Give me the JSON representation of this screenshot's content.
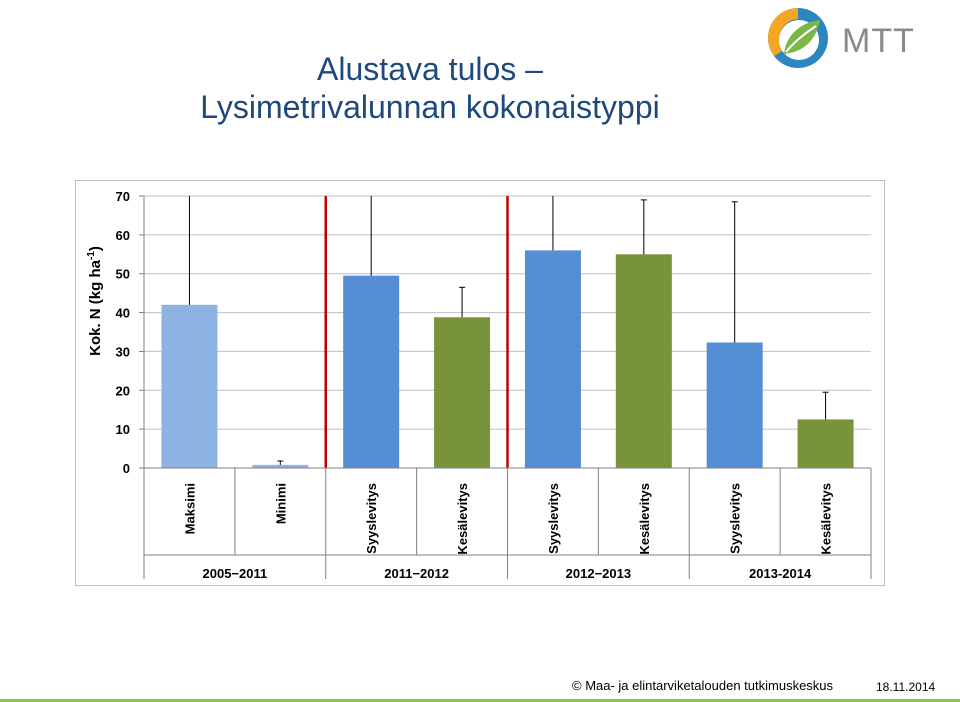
{
  "title": {
    "line1": "Alustava tulos –",
    "line2": "Lysimetrivalunnan kokonaistyppi"
  },
  "logo": {
    "text": "MTT",
    "icon": "mtt-leaf-logo-icon"
  },
  "footer": {
    "copyright": "© Maa- ja elintarviketalouden tutkimuskeskus",
    "date": "18.11.2014"
  },
  "colors": {
    "title": "#1F497D",
    "light_blue": "#8DB3E2",
    "blue": "#558ED5",
    "green": "#77933C",
    "separator": "#C00000"
  },
  "chart_data": {
    "type": "bar",
    "ylabel": "Kok. N (kg ha-1)",
    "ylabel_parts": {
      "main": "Kok. N (kg ha",
      "superscript": "-1",
      "close": ")"
    },
    "ylim": [
      0,
      70
    ],
    "yticks": [
      0,
      10,
      20,
      30,
      40,
      50,
      60,
      70
    ],
    "grid": true,
    "categories": [
      "Maksimi",
      "Minimi",
      "Syyslevitys",
      "Kesälevitys",
      "Syyslevitys",
      "Kesälevitys",
      "Syyslevitys",
      "Kesälevitys"
    ],
    "values": [
      42,
      0.8,
      49.5,
      38.8,
      56,
      55,
      32.3,
      12.5
    ],
    "error_upper": [
      70,
      1.8,
      70,
      46.5,
      70,
      69,
      68.5,
      19.5
    ],
    "bar_colors": [
      "#8DB3E2",
      "#8DB3E2",
      "#558ED5",
      "#77933C",
      "#558ED5",
      "#77933C",
      "#558ED5",
      "#77933C"
    ],
    "groups": [
      {
        "label": "2005−2011",
        "span": 2
      },
      {
        "label": "2011−2012",
        "span": 2
      },
      {
        "label": "2012−2013",
        "span": 2
      },
      {
        "label": "2013-2014",
        "span": 2
      }
    ],
    "separators_after_category": [
      1,
      3
    ]
  }
}
